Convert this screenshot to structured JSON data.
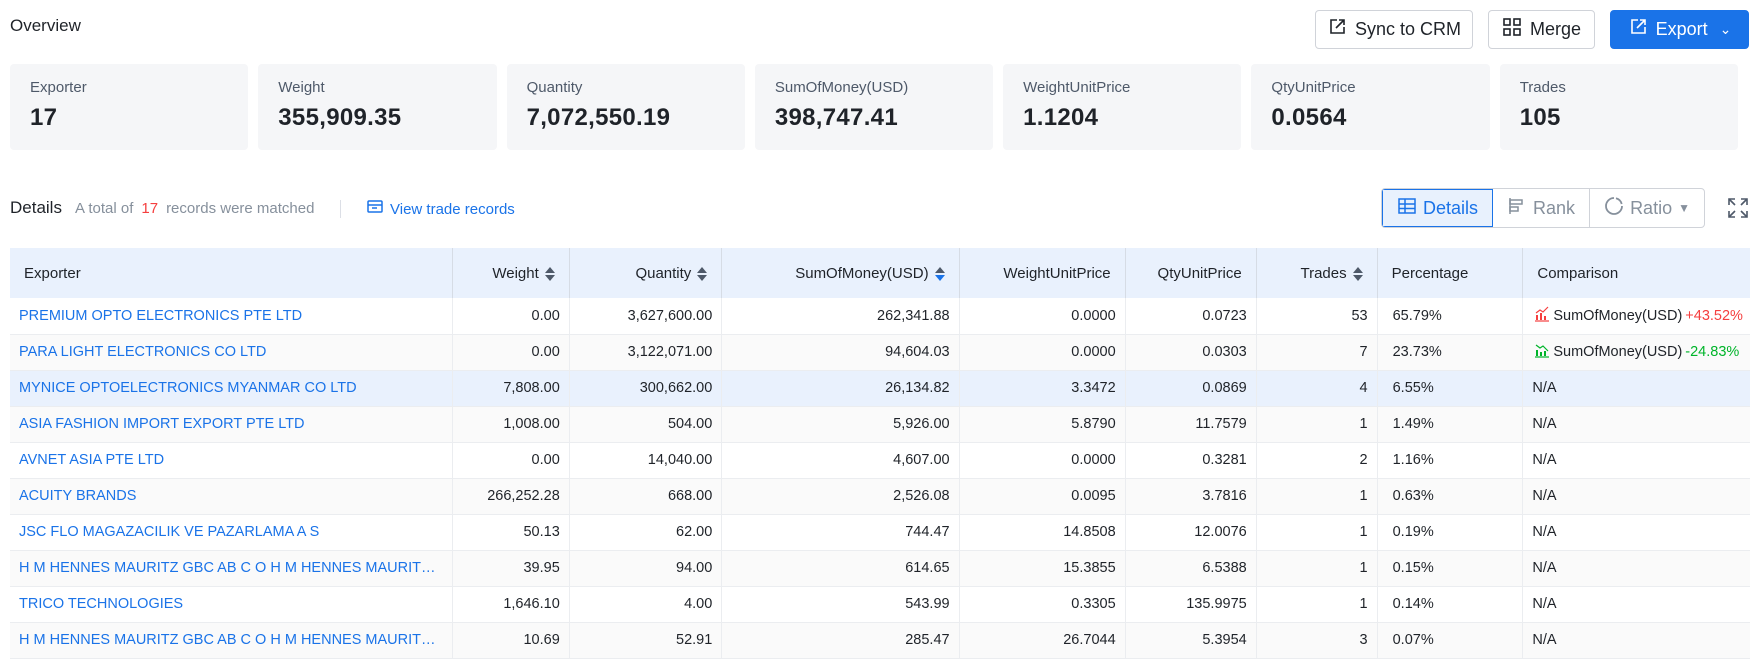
{
  "header": {
    "title": "Overview",
    "sync_label": "Sync to CRM",
    "merge_label": "Merge",
    "export_label": "Export"
  },
  "summary_cards": [
    {
      "label": "Exporter",
      "value": "17"
    },
    {
      "label": "Weight",
      "value": "355,909.35"
    },
    {
      "label": "Quantity",
      "value": "7,072,550.19"
    },
    {
      "label": "SumOfMoney(USD)",
      "value": "398,747.41"
    },
    {
      "label": "WeightUnitPrice",
      "value": "1.1204"
    },
    {
      "label": "QtyUnitPrice",
      "value": "0.0564"
    },
    {
      "label": "Trades",
      "value": "105"
    }
  ],
  "details": {
    "title": "Details",
    "prefix": "A total of",
    "count": "17",
    "suffix": "records were matched",
    "view_link": "View trade records"
  },
  "view_tabs": {
    "details": "Details",
    "rank": "Rank",
    "ratio": "Ratio"
  },
  "colors": {
    "accent": "#1a73e8",
    "up": "#f53f3f",
    "down": "#00b42a",
    "header_bg": "#e9f1fd"
  },
  "table": {
    "columns": [
      "Exporter",
      "Weight",
      "Quantity",
      "SumOfMoney(USD)",
      "WeightUnitPrice",
      "QtyUnitPrice",
      "Trades",
      "Percentage",
      "Comparison"
    ],
    "rows": [
      {
        "exporter": "PREMIUM OPTO ELECTRONICS PTE LTD",
        "weight": "0.00",
        "quantity": "3,627,600.00",
        "sum": "262,341.88",
        "wup": "0.0000",
        "qup": "0.0723",
        "trades": "53",
        "pct": "65.79%",
        "cmp_label": "SumOfMoney(USD)",
        "cmp_delta": "+43.52%",
        "cmp_dir": "up"
      },
      {
        "exporter": "PARA LIGHT ELECTRONICS CO LTD",
        "weight": "0.00",
        "quantity": "3,122,071.00",
        "sum": "94,604.03",
        "wup": "0.0000",
        "qup": "0.0303",
        "trades": "7",
        "pct": "23.73%",
        "cmp_label": "SumOfMoney(USD)",
        "cmp_delta": "-24.83%",
        "cmp_dir": "down"
      },
      {
        "exporter": "MYNICE OPTOELECTRONICS MYANMAR CO LTD",
        "weight": "7,808.00",
        "quantity": "300,662.00",
        "sum": "26,134.82",
        "wup": "3.3472",
        "qup": "0.0869",
        "trades": "4",
        "pct": "6.55%",
        "cmp_label": "N/A",
        "cmp_delta": "",
        "cmp_dir": "none"
      },
      {
        "exporter": "ASIA FASHION IMPORT EXPORT PTE LTD",
        "weight": "1,008.00",
        "quantity": "504.00",
        "sum": "5,926.00",
        "wup": "5.8790",
        "qup": "11.7579",
        "trades": "1",
        "pct": "1.49%",
        "cmp_label": "N/A",
        "cmp_delta": "",
        "cmp_dir": "none"
      },
      {
        "exporter": "AVNET ASIA PTE LTD",
        "weight": "0.00",
        "quantity": "14,040.00",
        "sum": "4,607.00",
        "wup": "0.0000",
        "qup": "0.3281",
        "trades": "2",
        "pct": "1.16%",
        "cmp_label": "N/A",
        "cmp_delta": "",
        "cmp_dir": "none"
      },
      {
        "exporter": "ACUITY BRANDS",
        "weight": "266,252.28",
        "quantity": "668.00",
        "sum": "2,526.08",
        "wup": "0.0095",
        "qup": "3.7816",
        "trades": "1",
        "pct": "0.63%",
        "cmp_label": "N/A",
        "cmp_delta": "",
        "cmp_dir": "none"
      },
      {
        "exporter": "JSC FLO MAGAZACILIK VE PAZARLAMA A S",
        "weight": "50.13",
        "quantity": "62.00",
        "sum": "744.47",
        "wup": "14.8508",
        "qup": "12.0076",
        "trades": "1",
        "pct": "0.19%",
        "cmp_label": "N/A",
        "cmp_delta": "",
        "cmp_dir": "none"
      },
      {
        "exporter": "H M HENNES MAURITZ GBC AB C O H M HENNES MAURITZ L...",
        "weight": "39.95",
        "quantity": "94.00",
        "sum": "614.65",
        "wup": "15.3855",
        "qup": "6.5388",
        "trades": "1",
        "pct": "0.15%",
        "cmp_label": "N/A",
        "cmp_delta": "",
        "cmp_dir": "none"
      },
      {
        "exporter": "TRICO TECHNOLOGIES",
        "weight": "1,646.10",
        "quantity": "4.00",
        "sum": "543.99",
        "wup": "0.3305",
        "qup": "135.9975",
        "trades": "1",
        "pct": "0.14%",
        "cmp_label": "N/A",
        "cmp_delta": "",
        "cmp_dir": "none"
      },
      {
        "exporter": "H M HENNES MAURITZ GBC AB C O H M HENNES MAURITZ L...",
        "weight": "10.69",
        "quantity": "52.91",
        "sum": "285.47",
        "wup": "26.7044",
        "qup": "5.3954",
        "trades": "3",
        "pct": "0.07%",
        "cmp_label": "N/A",
        "cmp_delta": "",
        "cmp_dir": "none"
      }
    ]
  }
}
